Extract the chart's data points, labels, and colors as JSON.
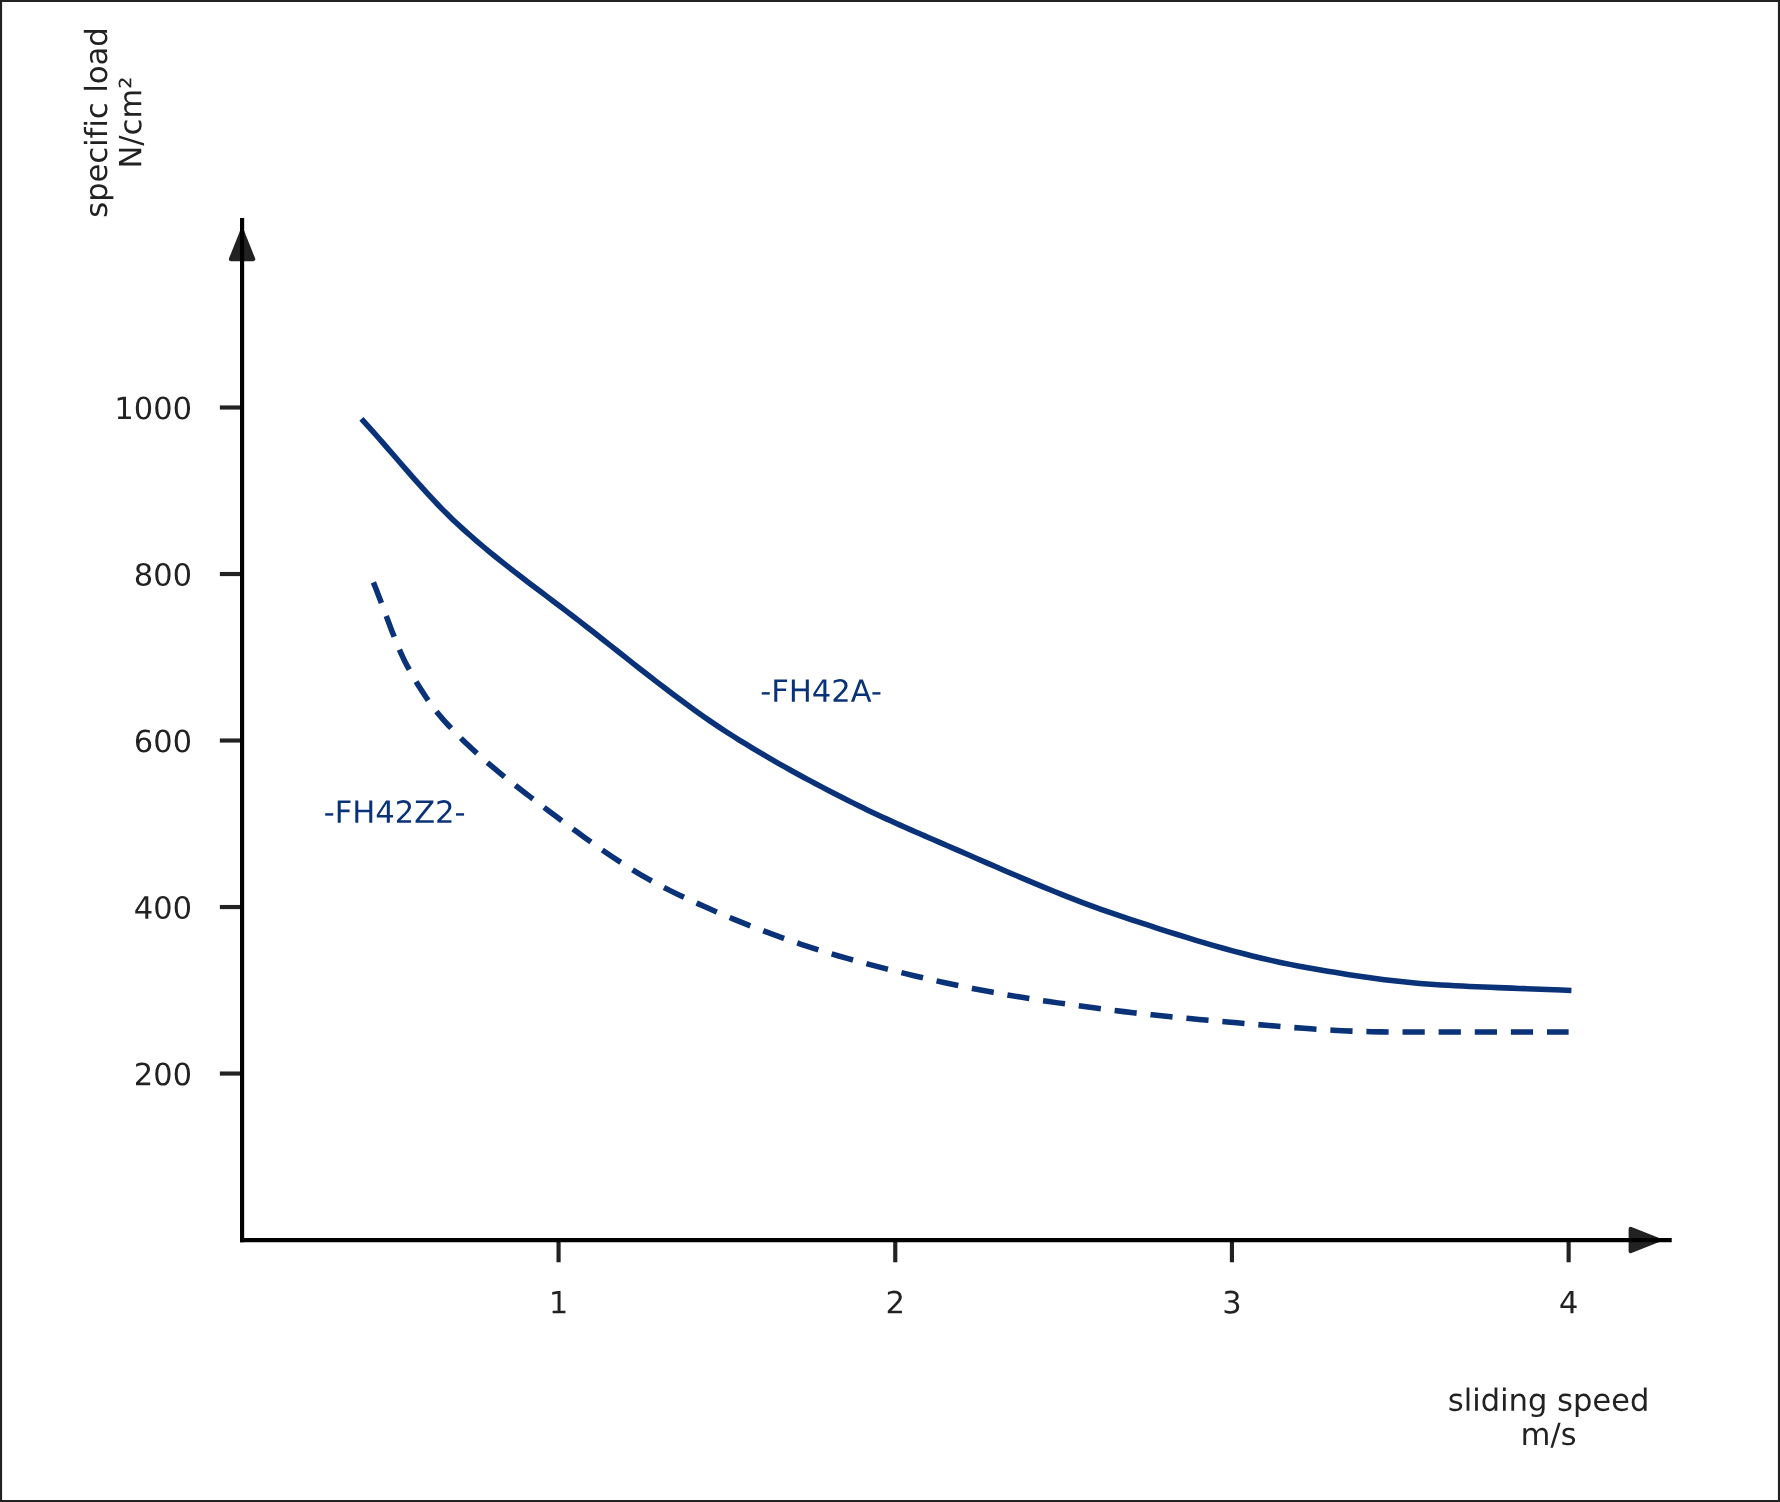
{
  "chart_data": {
    "type": "line",
    "xlabel": "sliding speed\nm/s",
    "ylabel": "specific load\nN/cm²",
    "xlim": [
      0.06,
      4.3
    ],
    "ylim": [
      0,
      1225
    ],
    "xticks": [
      1,
      2,
      3,
      4
    ],
    "yticks": [
      200,
      400,
      600,
      800,
      1000
    ],
    "grid": false,
    "legend": false,
    "marker": "none",
    "series": [
      {
        "name": "-FH42A-",
        "color": "#0a3278",
        "line_style": "solid",
        "x": [
          0.42,
          0.7,
          1.06,
          1.5,
          1.86,
          2.13,
          2.67,
          3.2,
          3.6,
          4.0
        ],
        "values": [
          984,
          860,
          744,
          610,
          528,
          478,
          389,
          329,
          307,
          300
        ]
      },
      {
        "name": "-FH42Z2-",
        "color": "#0a3278",
        "line_style": "dashed",
        "x": [
          0.45,
          0.55,
          0.66,
          0.93,
          1.33,
          1.86,
          2.4,
          2.93,
          3.47,
          4.0
        ],
        "values": [
          790,
          690,
          624,
          528,
          420,
          338,
          290,
          264,
          250,
          250
        ]
      }
    ]
  }
}
